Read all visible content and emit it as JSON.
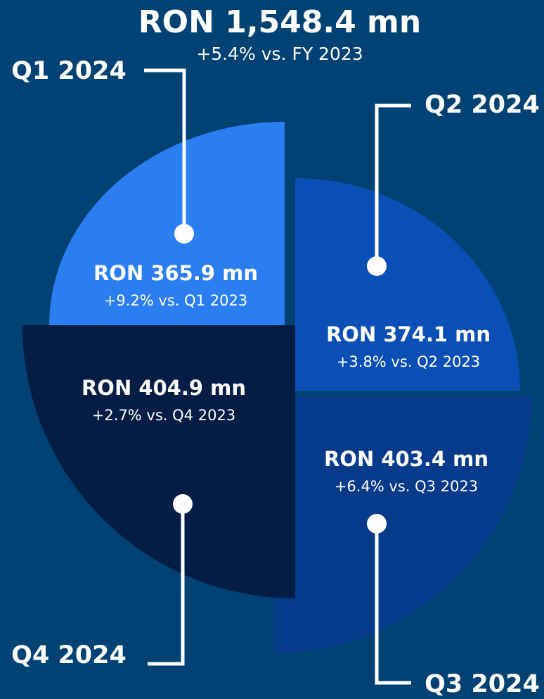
{
  "title": "RON 1,548.4 mn",
  "subtitle": "+5.4% vs. FY 2023",
  "quarters": [
    {
      "label": "Q1 2024",
      "value": "RON 365.9 mn",
      "change": "+9.2% vs. Q1 2023"
    },
    {
      "label": "Q2 2024",
      "value": "RON 374.1 mn",
      "change": "+3.8% vs. Q2 2023"
    },
    {
      "label": "Q3 2024",
      "value": "RON 403.4 mn",
      "change": "+6.4% vs. Q3 2023"
    },
    {
      "label": "Q4 2024",
      "value": "RON 404.9 mn",
      "change": "+2.7% vs. Q4 2023"
    }
  ]
}
